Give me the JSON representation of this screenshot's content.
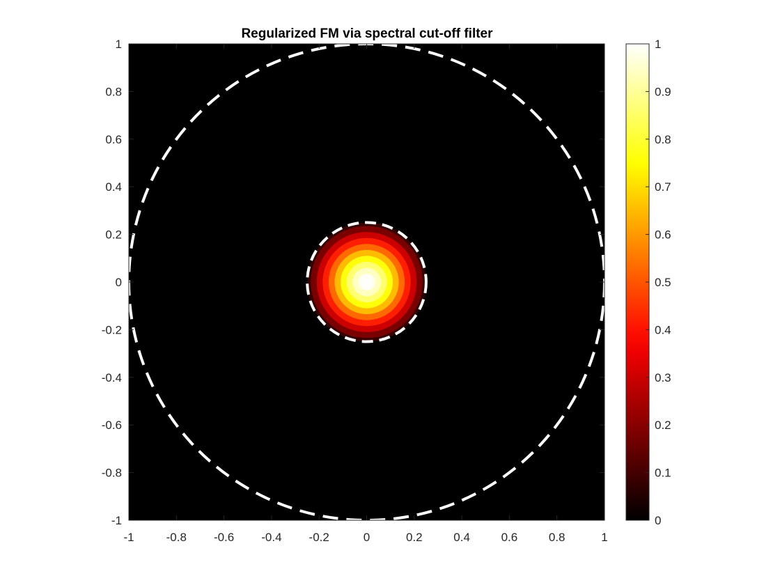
{
  "chart_data": {
    "type": "heatmap",
    "title": "Regularized FM via spectral cut-off filter",
    "xlabel": "",
    "ylabel": "",
    "xlim": [
      -1,
      1
    ],
    "ylim": [
      -1,
      1
    ],
    "x_ticks": [
      "-1",
      "-0.8",
      "-0.6",
      "-0.4",
      "-0.2",
      "0",
      "0.2",
      "0.4",
      "0.6",
      "0.8",
      "1"
    ],
    "y_ticks": [
      "1",
      "0.8",
      "0.6",
      "0.4",
      "0.2",
      "0",
      "-0.2",
      "-0.4",
      "-0.6",
      "-0.8",
      "-1"
    ],
    "colormap": "hot",
    "background_color": "#000000",
    "colorbar": {
      "range": [
        0,
        1
      ],
      "ticks": [
        "1",
        "0.9",
        "0.8",
        "0.7",
        "0.6",
        "0.5",
        "0.4",
        "0.3",
        "0.2",
        "0.1",
        "0"
      ],
      "tick_values": [
        1,
        0.9,
        0.8,
        0.7,
        0.6,
        0.5,
        0.4,
        0.3,
        0.2,
        0.1,
        0
      ]
    },
    "field": {
      "center": [
        0,
        0
      ],
      "support_radius": 0.25,
      "peak_value": 1.0,
      "levels": [
        {
          "radius": 0.25,
          "value": 0.08
        },
        {
          "radius": 0.235,
          "value": 0.18
        },
        {
          "radius": 0.21,
          "value": 0.3
        },
        {
          "radius": 0.185,
          "value": 0.42
        },
        {
          "radius": 0.16,
          "value": 0.53
        },
        {
          "radius": 0.135,
          "value": 0.65
        },
        {
          "radius": 0.11,
          "value": 0.76
        },
        {
          "radius": 0.085,
          "value": 0.86
        },
        {
          "radius": 0.06,
          "value": 0.94
        },
        {
          "radius": 0.035,
          "value": 0.99
        }
      ]
    },
    "circles": [
      {
        "center": [
          0,
          0
        ],
        "radius": 1.0,
        "style": "dashed",
        "color": "#ffffff"
      },
      {
        "center": [
          0,
          0
        ],
        "radius": 0.25,
        "style": "dashed",
        "color": "#ffffff"
      }
    ],
    "grid": false,
    "legend": "none"
  }
}
